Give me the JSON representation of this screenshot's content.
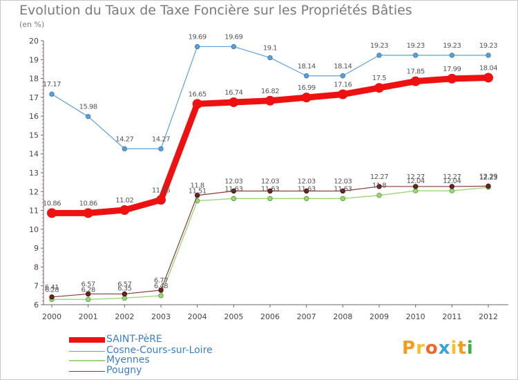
{
  "chart_data": {
    "type": "line",
    "title": "Evolution du Taux de Taxe Foncière sur les Propriétés Bâties",
    "ylabel": "(en %)",
    "xlabel": "",
    "x": [
      "2000",
      "2001",
      "2002",
      "2003",
      "2004",
      "2005",
      "2006",
      "2007",
      "2008",
      "2009",
      "2010",
      "2011",
      "2012"
    ],
    "ylim": [
      6,
      20
    ],
    "yticks": [
      "6",
      "7",
      "8",
      "9",
      "10",
      "11",
      "12",
      "13",
      "14",
      "15",
      "16",
      "17",
      "18",
      "19",
      "20"
    ],
    "series": [
      {
        "name": "SAINT-PèRE",
        "color": "#ee1111",
        "values": [
          10.86,
          10.86,
          11.02,
          11.56,
          16.65,
          16.74,
          16.82,
          16.99,
          17.16,
          17.5,
          17.85,
          17.99,
          18.04
        ],
        "labels": [
          "10.86",
          "10.86",
          "11.02",
          "11.56",
          "16.65",
          "16.74",
          "16.82",
          "16.99",
          "17.16",
          "17.5",
          "17.85",
          "17.99",
          "18.04"
        ]
      },
      {
        "name": "Cosne-Cours-sur-Loire",
        "color": "#5d9fd4",
        "values": [
          17.17,
          15.98,
          14.27,
          14.27,
          19.69,
          19.69,
          19.1,
          18.14,
          18.14,
          19.23,
          19.23,
          19.23,
          19.23
        ],
        "labels": [
          "17.17",
          "15.98",
          "14.27",
          "14.27",
          "19.69",
          "19.69",
          "19.1",
          "18.14",
          "18.14",
          "19.23",
          "19.23",
          "19.23",
          "19.23"
        ]
      },
      {
        "name": "Myennes",
        "color": "#9ed67a",
        "values": [
          6.28,
          6.28,
          6.35,
          6.48,
          11.51,
          11.63,
          11.63,
          11.63,
          11.63,
          11.8,
          12.04,
          12.04,
          12.23
        ],
        "labels": [
          "6.28",
          "6.28",
          "6.35",
          "6.48",
          "11.51",
          "11.63",
          "11.63",
          "11.63",
          "11.63",
          "11.8",
          "12.04",
          "12.04",
          "12.23"
        ]
      },
      {
        "name": "Pougny",
        "color": "#8a3a3a",
        "values": [
          6.41,
          6.57,
          6.57,
          6.77,
          11.8,
          12.03,
          12.03,
          12.03,
          12.03,
          12.27,
          12.27,
          12.27,
          12.29
        ],
        "labels": [
          "6.41",
          "6.57",
          "6.57",
          "6.77",
          "11.8",
          "12.03",
          "12.03",
          "12.03",
          "12.03",
          "12.27",
          "12.27",
          "12.27",
          "12.29"
        ]
      }
    ],
    "legend": [
      "SAINT-PèRE",
      "Cosne-Cours-sur-Loire",
      "Myennes",
      "Pougny"
    ],
    "legend_position": "bottom-left",
    "grid": false
  },
  "branding": {
    "logo_text": "Proxiti",
    "logo_colors": [
      "#f39a1f",
      "#f5c02a",
      "#f2662a",
      "#39a3d8",
      "#f5c02a",
      "#f39a1f",
      "#3fae49"
    ]
  }
}
